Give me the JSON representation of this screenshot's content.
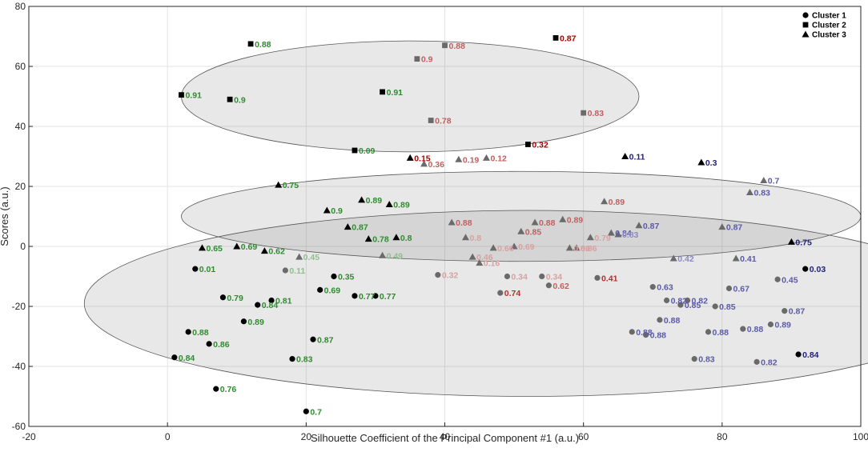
{
  "chart_data": {
    "type": "scatter",
    "xlabel": "Silhouette Coefficient of the Principal Component #1 (a.u.)",
    "ylabel": "Scores (a.u.)",
    "xlim": [
      -20,
      100
    ],
    "ylim": [
      -60,
      80
    ],
    "xticks": [
      "-20",
      "0",
      "20",
      "40",
      "60",
      "80",
      "100"
    ],
    "yticks": [
      "-60",
      "-40",
      "-20",
      "0",
      "20",
      "40",
      "60",
      "80"
    ],
    "grid": true,
    "legend_position": "top-right",
    "legend": [
      {
        "name": "Cluster 1",
        "marker": "circle"
      },
      {
        "name": "Cluster 2",
        "marker": "square"
      },
      {
        "name": "Cluster 3",
        "marker": "triangle"
      }
    ],
    "ellipses": [
      {
        "cx": 35,
        "cy": 50,
        "rx": 33,
        "ry": 18.5
      },
      {
        "cx": 51,
        "cy": 10,
        "rx": 49,
        "ry": 15
      },
      {
        "cx": 52,
        "cy": -19,
        "rx": 64,
        "ry": 31
      }
    ],
    "series": [
      {
        "marker": "square",
        "points": [
          {
            "x": 12,
            "y": 67.5,
            "label": "0.88",
            "color": "#2e8b2e"
          },
          {
            "x": 40,
            "y": 67,
            "label": "0.88",
            "color": "#c06060"
          },
          {
            "x": 56,
            "y": 69.5,
            "label": "0.87",
            "color": "#b00000"
          },
          {
            "x": 36,
            "y": 62.5,
            "label": "0.9",
            "color": "#c06060"
          },
          {
            "x": 2,
            "y": 50.5,
            "label": "0.91",
            "color": "#2e8b2e"
          },
          {
            "x": 9,
            "y": 49,
            "label": "0.9",
            "color": "#2e8b2e"
          },
          {
            "x": 31,
            "y": 51.5,
            "label": "0.91",
            "color": "#2e8b2e"
          },
          {
            "x": 60,
            "y": 44.5,
            "label": "0.83",
            "color": "#c06060"
          },
          {
            "x": 38,
            "y": 42,
            "label": "0.78",
            "color": "#c06060"
          },
          {
            "x": 27,
            "y": 32,
            "label": "0.09",
            "color": "#2e8b2e"
          },
          {
            "x": 52,
            "y": 34,
            "label": "0.32",
            "color": "#b00000"
          }
        ]
      },
      {
        "marker": "triangle",
        "points": [
          {
            "x": 35,
            "y": 29.5,
            "label": "0.15",
            "color": "#b00000"
          },
          {
            "x": 37,
            "y": 27.5,
            "label": "0.36",
            "color": "#c06060"
          },
          {
            "x": 42,
            "y": 29,
            "label": "0.19",
            "color": "#c06060"
          },
          {
            "x": 46,
            "y": 29.5,
            "label": "0.12",
            "color": "#c06060"
          },
          {
            "x": 66,
            "y": 30,
            "label": "0.11",
            "color": "#1f1f7a"
          },
          {
            "x": 77,
            "y": 28,
            "label": "0.3",
            "color": "#1f1f7a"
          },
          {
            "x": 86,
            "y": 22,
            "label": "0.7",
            "color": "#5a5aa8"
          },
          {
            "x": 84,
            "y": 18,
            "label": "0.83",
            "color": "#5a5aa8"
          },
          {
            "x": 16,
            "y": 20.5,
            "label": "0.75",
            "color": "#2e8b2e"
          },
          {
            "x": 28,
            "y": 15.5,
            "label": "0.89",
            "color": "#2e8b2e"
          },
          {
            "x": 32,
            "y": 14,
            "label": "0.89",
            "color": "#2e8b2e"
          },
          {
            "x": 23,
            "y": 12,
            "label": "0.9",
            "color": "#2e8b2e"
          },
          {
            "x": 63,
            "y": 15,
            "label": "0.89",
            "color": "#c06060"
          },
          {
            "x": 26,
            "y": 6.5,
            "label": "0.87",
            "color": "#2e8b2e"
          },
          {
            "x": 41,
            "y": 8,
            "label": "0.88",
            "color": "#c06060"
          },
          {
            "x": 53,
            "y": 8,
            "label": "0.88",
            "color": "#c06060"
          },
          {
            "x": 57,
            "y": 9,
            "label": "0.89",
            "color": "#c06060"
          },
          {
            "x": 51,
            "y": 5,
            "label": "0.85",
            "color": "#c06060"
          },
          {
            "x": 68,
            "y": 7,
            "label": "0.87",
            "color": "#5a5aa8"
          },
          {
            "x": 80,
            "y": 6.5,
            "label": "0.87",
            "color": "#5a5aa8"
          },
          {
            "x": 64,
            "y": 4.5,
            "label": "0.84",
            "color": "#5a5aa8"
          },
          {
            "x": 65,
            "y": 4,
            "label": "0.83",
            "color": "#8a8ac4"
          },
          {
            "x": 29,
            "y": 2.5,
            "label": "0.78",
            "color": "#2e8b2e"
          },
          {
            "x": 33,
            "y": 3,
            "label": "0.8",
            "color": "#2e8b2e"
          },
          {
            "x": 43,
            "y": 3,
            "label": "0.8",
            "color": "#d9a0a0"
          },
          {
            "x": 61,
            "y": 3,
            "label": "0.79",
            "color": "#d9a0a0"
          },
          {
            "x": 90,
            "y": 1.5,
            "label": "0.75",
            "color": "#1f1f7a"
          },
          {
            "x": 5,
            "y": -0.5,
            "label": "0.65",
            "color": "#2e8b2e"
          },
          {
            "x": 10,
            "y": 0,
            "label": "0.69",
            "color": "#2e8b2e"
          },
          {
            "x": 14,
            "y": -1.5,
            "label": "0.62",
            "color": "#2e8b2e"
          },
          {
            "x": 19,
            "y": -3.5,
            "label": "0.45",
            "color": "#8fbf8f"
          },
          {
            "x": 31,
            "y": -3,
            "label": "0.49",
            "color": "#8fbf8f"
          },
          {
            "x": 44,
            "y": -3.5,
            "label": "0.46",
            "color": "#d9a0a0"
          },
          {
            "x": 45,
            "y": -5.5,
            "label": "0.16",
            "color": "#d9a0a0"
          },
          {
            "x": 47,
            "y": -0.5,
            "label": "0.66",
            "color": "#d9a0a0"
          },
          {
            "x": 50,
            "y": 0,
            "label": "0.69",
            "color": "#d9a0a0"
          },
          {
            "x": 58,
            "y": -0.5,
            "label": "0.86",
            "color": "#d9a0a0"
          },
          {
            "x": 59,
            "y": -0.5,
            "label": "0.86",
            "color": "#d9a0a0"
          },
          {
            "x": 73,
            "y": -4,
            "label": "0.42",
            "color": "#8a8ac4"
          },
          {
            "x": 82,
            "y": -4,
            "label": "0.41",
            "color": "#5a5aa8"
          }
        ]
      },
      {
        "marker": "circle",
        "points": [
          {
            "x": 4,
            "y": -7.5,
            "label": "0.01",
            "color": "#2e8b2e"
          },
          {
            "x": 17,
            "y": -8,
            "label": "0.11",
            "color": "#8fbf8f"
          },
          {
            "x": 24,
            "y": -10,
            "label": "0.35",
            "color": "#2e8b2e"
          },
          {
            "x": 39,
            "y": -9.5,
            "label": "0.32",
            "color": "#d9a0a0"
          },
          {
            "x": 49,
            "y": -10,
            "label": "0.34",
            "color": "#d9a0a0"
          },
          {
            "x": 54,
            "y": -10,
            "label": "0.34",
            "color": "#d9a0a0"
          },
          {
            "x": 62,
            "y": -10.5,
            "label": "0.41",
            "color": "#b03030"
          },
          {
            "x": 92,
            "y": -7.5,
            "label": "0.03",
            "color": "#1f1f7a"
          },
          {
            "x": 88,
            "y": -11,
            "label": "0.45",
            "color": "#5a5aa8"
          },
          {
            "x": 55,
            "y": -13,
            "label": "0.62",
            "color": "#c06060"
          },
          {
            "x": 48,
            "y": -15.5,
            "label": "0.74",
            "color": "#b03030"
          },
          {
            "x": 70,
            "y": -13.5,
            "label": "0.63",
            "color": "#5a5aa8"
          },
          {
            "x": 81,
            "y": -14,
            "label": "0.67",
            "color": "#5a5aa8"
          },
          {
            "x": 22,
            "y": -14.5,
            "label": "0.69",
            "color": "#2e8b2e"
          },
          {
            "x": 27,
            "y": -16.5,
            "label": "0.77",
            "color": "#2e8b2e"
          },
          {
            "x": 30,
            "y": -16.5,
            "label": "0.77",
            "color": "#2e8b2e"
          },
          {
            "x": 8,
            "y": -17,
            "label": "0.79",
            "color": "#2e8b2e"
          },
          {
            "x": 15,
            "y": -18,
            "label": "0.81",
            "color": "#2e8b2e"
          },
          {
            "x": 13,
            "y": -19.5,
            "label": "0.84",
            "color": "#2e8b2e"
          },
          {
            "x": 72,
            "y": -18,
            "label": "0.82",
            "color": "#5a5aa8"
          },
          {
            "x": 75,
            "y": -18,
            "label": "0.82",
            "color": "#5a5aa8"
          },
          {
            "x": 74,
            "y": -19.5,
            "label": "0.85",
            "color": "#5a5aa8"
          },
          {
            "x": 79,
            "y": -20,
            "label": "0.85",
            "color": "#5a5aa8"
          },
          {
            "x": 89,
            "y": -21.5,
            "label": "0.87",
            "color": "#5a5aa8"
          },
          {
            "x": 11,
            "y": -25,
            "label": "0.89",
            "color": "#2e8b2e"
          },
          {
            "x": 71,
            "y": -24.5,
            "label": "0.88",
            "color": "#5a5aa8"
          },
          {
            "x": 87,
            "y": -26,
            "label": "0.89",
            "color": "#5a5aa8"
          },
          {
            "x": 3,
            "y": -28.5,
            "label": "0.88",
            "color": "#2e8b2e"
          },
          {
            "x": 67,
            "y": -28.5,
            "label": "0.88",
            "color": "#5a5aa8"
          },
          {
            "x": 69,
            "y": -29.5,
            "label": "0.88",
            "color": "#5a5aa8"
          },
          {
            "x": 78,
            "y": -28.5,
            "label": "0.88",
            "color": "#5a5aa8"
          },
          {
            "x": 83,
            "y": -27.5,
            "label": "0.88",
            "color": "#5a5aa8"
          },
          {
            "x": 21,
            "y": -31,
            "label": "0.87",
            "color": "#2e8b2e"
          },
          {
            "x": 6,
            "y": -32.5,
            "label": "0.86",
            "color": "#2e8b2e"
          },
          {
            "x": 1,
            "y": -37,
            "label": "0.84",
            "color": "#2e8b2e"
          },
          {
            "x": 18,
            "y": -37.5,
            "label": "0.83",
            "color": "#2e8b2e"
          },
          {
            "x": 76,
            "y": -37.5,
            "label": "0.83",
            "color": "#5a5aa8"
          },
          {
            "x": 85,
            "y": -38.5,
            "label": "0.82",
            "color": "#5a5aa8"
          },
          {
            "x": 91,
            "y": -36,
            "label": "0.84",
            "color": "#1f1f7a"
          },
          {
            "x": 7,
            "y": -47.5,
            "label": "0.76",
            "color": "#2e8b2e"
          },
          {
            "x": 20,
            "y": -55,
            "label": "0.7",
            "color": "#2e8b2e"
          }
        ]
      }
    ]
  }
}
